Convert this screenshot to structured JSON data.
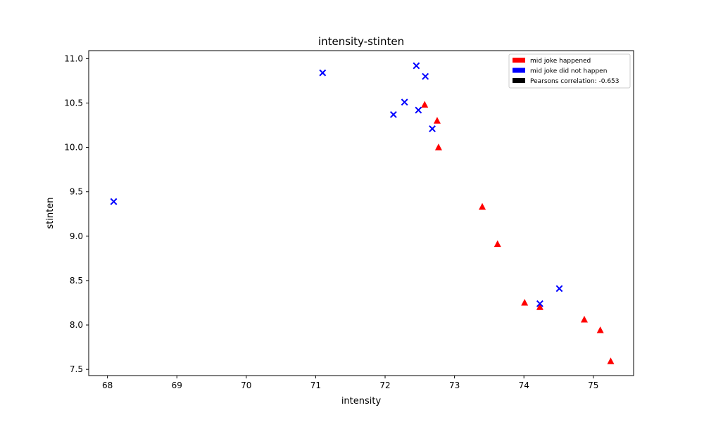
{
  "chart_data": {
    "type": "scatter",
    "title": "intensity-stinten",
    "xlabel": "intensity",
    "ylabel": "stinten",
    "xlim": [
      67.73,
      75.58
    ],
    "ylim": [
      7.43,
      11.09
    ],
    "xticks": [
      68,
      69,
      70,
      71,
      72,
      73,
      74,
      75
    ],
    "yticks": [
      7.5,
      8.0,
      8.5,
      9.0,
      9.5,
      10.0,
      10.5,
      11.0
    ],
    "xtick_labels": [
      "68",
      "69",
      "70",
      "71",
      "72",
      "73",
      "74",
      "75"
    ],
    "ytick_labels": [
      "7.5",
      "8.0",
      "8.5",
      "9.0",
      "9.5",
      "10.0",
      "10.5",
      "11.0"
    ],
    "grid": false,
    "legend_position": "top-right",
    "legend": [
      {
        "label": "mid joke happened",
        "color": "#ff0000"
      },
      {
        "label": "mid joke did not happen",
        "color": "#0000ff"
      },
      {
        "label": "Pearsons correlation: -0.653",
        "color": "#000000"
      }
    ],
    "series": [
      {
        "name": "mid joke happened",
        "marker": "triangle",
        "color": "#ff0000",
        "points": [
          [
            72.57,
            10.48
          ],
          [
            72.75,
            10.3
          ],
          [
            72.77,
            10.0
          ],
          [
            73.4,
            9.33
          ],
          [
            73.62,
            8.91
          ],
          [
            74.01,
            8.25
          ],
          [
            74.23,
            8.2
          ],
          [
            74.87,
            8.06
          ],
          [
            75.1,
            7.94
          ],
          [
            75.25,
            7.59
          ]
        ]
      },
      {
        "name": "mid joke did not happen",
        "marker": "x",
        "color": "#0000ff",
        "points": [
          [
            68.09,
            9.39
          ],
          [
            71.1,
            10.84
          ],
          [
            72.12,
            10.37
          ],
          [
            72.28,
            10.51
          ],
          [
            72.45,
            10.92
          ],
          [
            72.48,
            10.42
          ],
          [
            72.58,
            10.8
          ],
          [
            72.68,
            10.21
          ],
          [
            74.23,
            8.24
          ],
          [
            74.51,
            8.41
          ]
        ]
      }
    ]
  }
}
